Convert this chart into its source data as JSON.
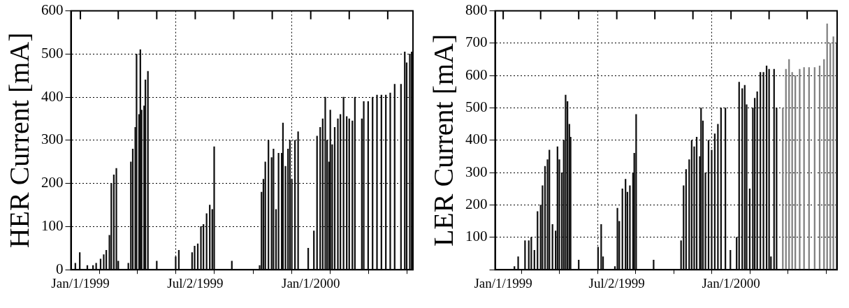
{
  "chart_data": [
    {
      "type": "bar",
      "ylabel": "HER Current [mA]",
      "xlim": [
        "1998-12-17",
        "2000-06-11"
      ],
      "ylim": [
        0,
        600
      ],
      "yticks": [
        0,
        100,
        200,
        300,
        400,
        500,
        600
      ],
      "xticks": [
        {
          "value": "1999-01-01",
          "label": "Jan/1/1999"
        },
        {
          "value": "1999-03-02",
          "label": null
        },
        {
          "value": "1999-05-02",
          "label": null
        },
        {
          "value": "1999-07-02",
          "label": "Jul/2/1999"
        },
        {
          "value": "1999-09-01",
          "label": null
        },
        {
          "value": "1999-11-01",
          "label": null
        },
        {
          "value": "2000-01-01",
          "label": "Jan/1/2000"
        },
        {
          "value": "2000-03-02",
          "label": null
        },
        {
          "value": "2000-05-02",
          "label": null
        }
      ],
      "grid": true,
      "series": [
        {
          "color": "#111111",
          "x": [
            "1998-12-24",
            "1998-12-31",
            "1999-01-12",
            "1999-01-21",
            "1999-01-26",
            "1999-02-02",
            "1999-02-07",
            "1999-02-11",
            "1999-02-16",
            "1999-02-19",
            "1999-02-23",
            "1999-02-27",
            "1999-03-02",
            "1999-03-18",
            "1999-03-22",
            "1999-03-25",
            "1999-03-29",
            "1999-03-31",
            "1999-04-04",
            "1999-04-06",
            "1999-04-08",
            "1999-04-12",
            "1999-04-14",
            "1999-04-18",
            "1999-05-02",
            "1999-06-01",
            "1999-06-06",
            "1999-06-27",
            "1999-07-01",
            "1999-07-06",
            "1999-07-11",
            "1999-07-15",
            "1999-07-20",
            "1999-07-25",
            "1999-07-29",
            "1999-08-01",
            "1999-08-29",
            "1999-10-12",
            "1999-10-15",
            "1999-10-18",
            "1999-10-21",
            "1999-10-26",
            "1999-10-31",
            "1999-11-03",
            "1999-11-07",
            "1999-11-11",
            "1999-11-16",
            "1999-11-18",
            "1999-11-22",
            "1999-11-26",
            "1999-11-29",
            "1999-12-02",
            "1999-12-07",
            "1999-12-12",
            "1999-12-28",
            "2000-01-06",
            "2000-01-11",
            "2000-01-16",
            "2000-01-20",
            "2000-01-24",
            "2000-01-27",
            "2000-01-30",
            "2000-02-01",
            "2000-02-04",
            "2000-02-08",
            "2000-02-13",
            "2000-02-17",
            "2000-02-22",
            "2000-02-27",
            "2000-03-02",
            "2000-03-07",
            "2000-03-11",
            "2000-03-22",
            "2000-03-25",
            "2000-04-01",
            "2000-04-08",
            "2000-04-15",
            "2000-04-22",
            "2000-04-29",
            "2000-05-06",
            "2000-05-13",
            "2000-05-23",
            "2000-05-29",
            "2000-06-01",
            "2000-06-06",
            "2000-06-09"
          ],
          "values": [
            15,
            40,
            10,
            10,
            15,
            25,
            35,
            45,
            80,
            200,
            220,
            235,
            20,
            15,
            250,
            280,
            330,
            500,
            360,
            510,
            370,
            380,
            440,
            460,
            20,
            30,
            45,
            40,
            55,
            60,
            100,
            105,
            130,
            150,
            140,
            285,
            20,
            10,
            180,
            210,
            250,
            300,
            260,
            280,
            140,
            270,
            270,
            340,
            240,
            280,
            300,
            210,
            300,
            320,
            50,
            90,
            310,
            330,
            350,
            400,
            300,
            250,
            370,
            290,
            330,
            350,
            360,
            400,
            355,
            350,
            345,
            400,
            350,
            390,
            390,
            400,
            405,
            405,
            405,
            410,
            430,
            430,
            505,
            480,
            500,
            505
          ]
        }
      ]
    },
    {
      "type": "bar",
      "ylabel": "LER Current [mA]",
      "xlim": [
        "1998-12-19",
        "2000-06-19"
      ],
      "ylim": [
        0,
        800
      ],
      "yticks": [
        {
          "value": 0,
          "label": null
        },
        100,
        200,
        300,
        400,
        500,
        600,
        700,
        800
      ],
      "xticks": [
        {
          "value": "1999-01-01",
          "label": "Jan/1/1999"
        },
        {
          "value": "1999-03-02",
          "label": null
        },
        {
          "value": "1999-05-02",
          "label": null
        },
        {
          "value": "1999-07-02",
          "label": "Jul/2/1999"
        },
        {
          "value": "1999-09-01",
          "label": null
        },
        {
          "value": "1999-11-01",
          "label": null
        },
        {
          "value": "2000-01-01",
          "label": "Jan/1/2000"
        },
        {
          "value": "2000-03-02",
          "label": null
        },
        {
          "value": "2000-05-02",
          "label": null
        }
      ],
      "grid": true,
      "series": [
        {
          "color": "#111111",
          "x": [
            "1999-01-19",
            "1999-01-25",
            "1999-02-05",
            "1999-02-11",
            "1999-02-15",
            "1999-02-20",
            "1999-02-25",
            "1999-03-02",
            "1999-03-05",
            "1999-03-09",
            "1999-03-13",
            "1999-03-16",
            "1999-03-21",
            "1999-03-26",
            "1999-03-29",
            "1999-04-01",
            "1999-04-05",
            "1999-04-08",
            "1999-04-11",
            "1999-04-14",
            "1999-04-17",
            "1999-04-19",
            "1999-05-02",
            "1999-06-02",
            "1999-06-07",
            "1999-06-10",
            "1999-06-29",
            "1999-07-03",
            "1999-07-06",
            "1999-07-11",
            "1999-07-16",
            "1999-07-19",
            "1999-07-23",
            "1999-07-28",
            "1999-07-30",
            "1999-08-02",
            "1999-08-30",
            "1999-10-13",
            "1999-10-17",
            "1999-10-21",
            "1999-10-26",
            "1999-10-30",
            "1999-11-03",
            "1999-11-07",
            "1999-11-12",
            "1999-11-14",
            "1999-11-17",
            "1999-11-21",
            "1999-11-26",
            "1999-12-01",
            "1999-12-06",
            "1999-12-11",
            "1999-12-16",
            "1999-12-23",
            "1999-12-31",
            "2000-01-10",
            "2000-01-14",
            "2000-01-19",
            "2000-01-23",
            "2000-01-26",
            "2000-01-31",
            "2000-02-05",
            "2000-02-08",
            "2000-02-12",
            "2000-02-17",
            "2000-02-22",
            "2000-02-27",
            "2000-03-02",
            "2000-03-05",
            "2000-03-10",
            "2000-03-14"
          ],
          "values": [
            10,
            40,
            90,
            90,
            100,
            60,
            180,
            200,
            260,
            320,
            340,
            370,
            140,
            120,
            380,
            340,
            300,
            400,
            540,
            520,
            450,
            410,
            30,
            70,
            140,
            40,
            10,
            190,
            150,
            250,
            280,
            240,
            260,
            300,
            360,
            480,
            30,
            90,
            260,
            310,
            340,
            400,
            380,
            410,
            350,
            500,
            460,
            300,
            400,
            370,
            420,
            450,
            500,
            500,
            60,
            100,
            580,
            560,
            570,
            510,
            250,
            500,
            530,
            550,
            610,
            610,
            630,
            620,
            40,
            620,
            500
          ]
        },
        {
          "color": "#808080",
          "x": [
            "2000-03-24",
            "2000-03-29",
            "2000-04-03",
            "2000-04-08",
            "2000-04-13",
            "2000-04-20",
            "2000-04-27",
            "2000-05-05",
            "2000-05-14",
            "2000-05-22",
            "2000-05-29",
            "2000-06-03",
            "2000-06-08",
            "2000-06-13",
            "2000-06-18"
          ],
          "values": [
            500,
            620,
            650,
            610,
            600,
            620,
            625,
            625,
            625,
            630,
            650,
            760,
            700,
            720,
            700
          ]
        }
      ]
    }
  ]
}
